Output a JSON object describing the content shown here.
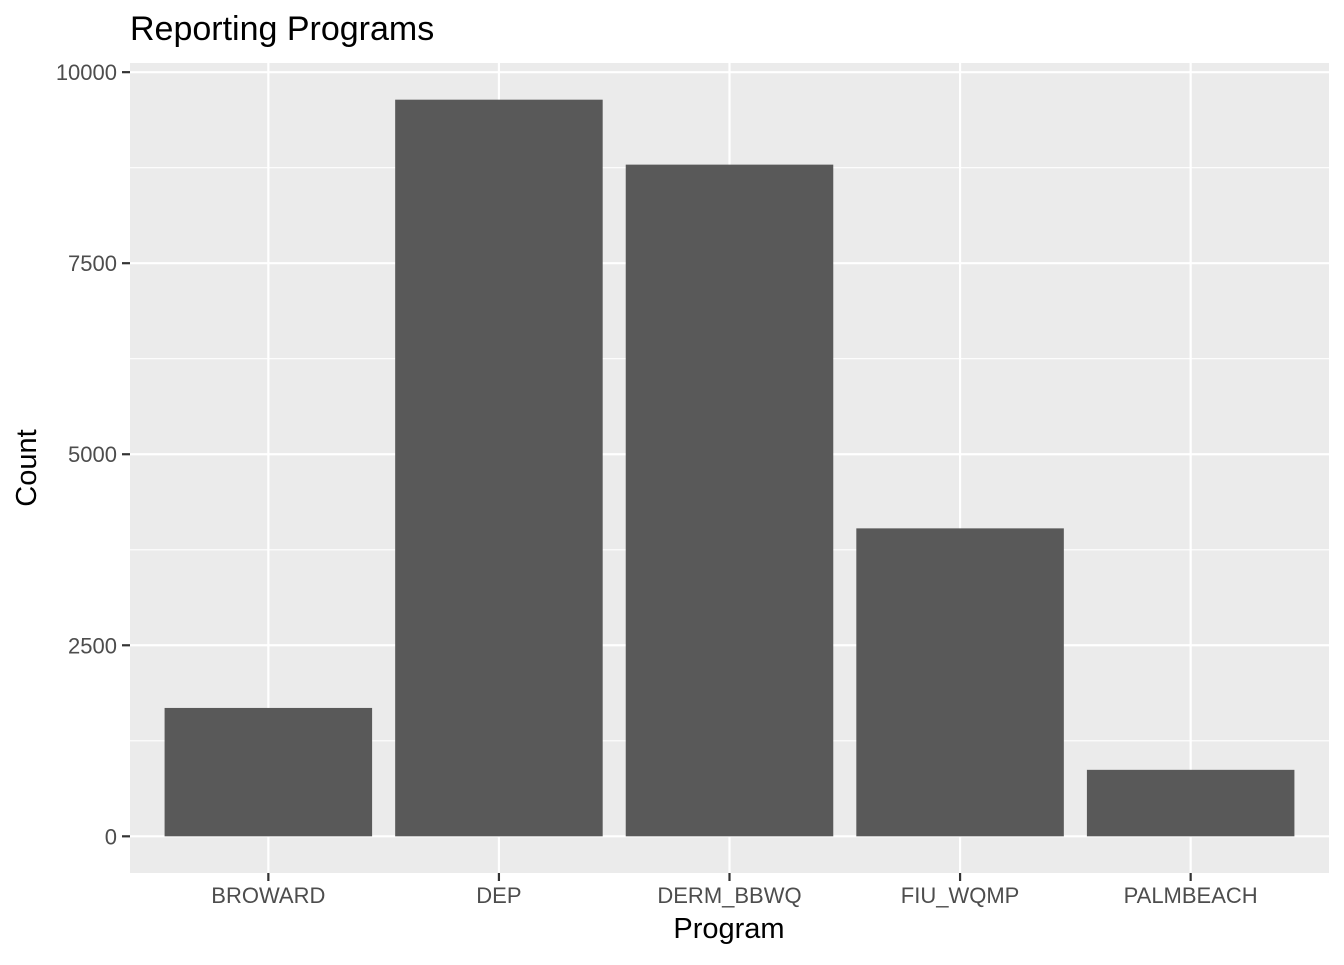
{
  "chart_data": {
    "type": "bar",
    "title": "Reporting Programs",
    "xlabel": "Program",
    "ylabel": "Count",
    "categories": [
      "BROWARD",
      "DEP",
      "DERM_BBWQ",
      "FIU_WQMP",
      "PALMBEACH"
    ],
    "values": [
      1680,
      9640,
      8790,
      4030,
      870
    ],
    "ylim": [
      -480,
      10120
    ],
    "yticks": [
      0,
      2500,
      5000,
      7500,
      10000
    ],
    "ytick_labels": [
      "0",
      "2500",
      "5000",
      "7500",
      "10000"
    ],
    "grid": true,
    "legend": "none"
  },
  "colors": {
    "panel_background": "#ebebeb",
    "grid_major": "#ffffff",
    "bar_fill": "#595959",
    "tick_text": "#4d4d4d",
    "tick_mark": "#333333"
  }
}
